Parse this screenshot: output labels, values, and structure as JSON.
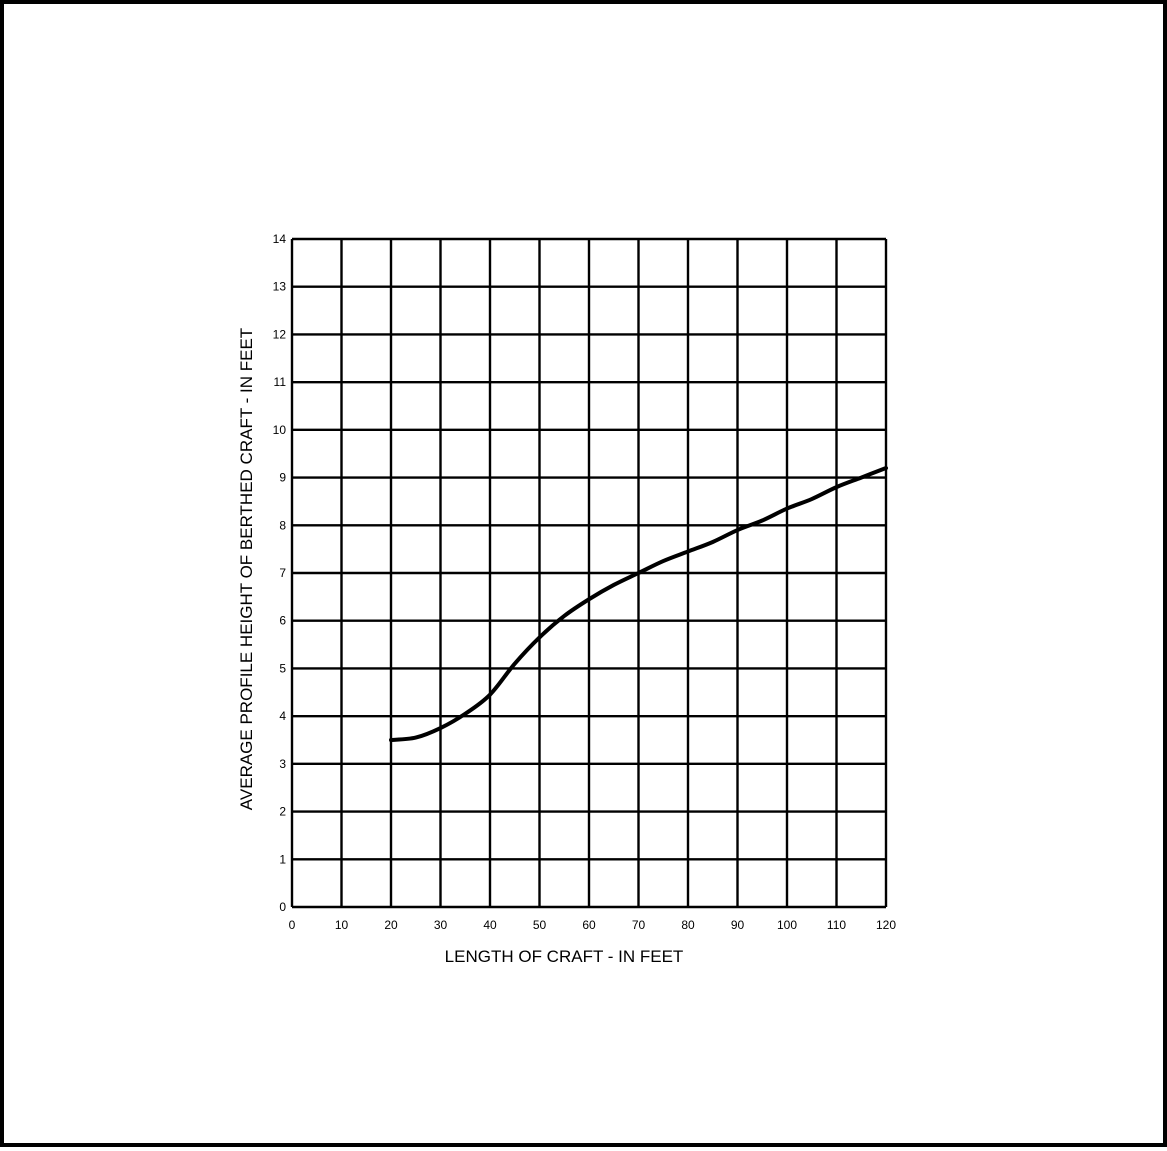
{
  "chart_data": {
    "type": "line",
    "title": "",
    "xlabel": "LENGTH OF CRAFT - IN FEET",
    "ylabel": "AVERAGE PROFILE HEIGHT OF BERTHED CRAFT - IN FEET",
    "xlim": [
      0,
      120
    ],
    "ylim": [
      0,
      14
    ],
    "x_ticks": [
      "0",
      "10",
      "20",
      "30",
      "40",
      "50",
      "60",
      "70",
      "80",
      "90",
      "100",
      "110",
      "120"
    ],
    "y_ticks": [
      "0",
      "1",
      "2",
      "3",
      "4",
      "5",
      "6",
      "7",
      "8",
      "9",
      "10",
      "11",
      "12",
      "13",
      "14"
    ],
    "grid": true,
    "series": [
      {
        "x": [
          20,
          25,
          30,
          35,
          40,
          45,
          50,
          55,
          60,
          65,
          70,
          75,
          80,
          85,
          90,
          95,
          100,
          105,
          110,
          115,
          120
        ],
        "y": [
          3.5,
          3.55,
          3.75,
          4.05,
          4.45,
          5.1,
          5.65,
          6.1,
          6.45,
          6.75,
          7.0,
          7.25,
          7.45,
          7.65,
          7.9,
          8.1,
          8.35,
          8.55,
          8.8,
          9.0,
          9.2
        ]
      }
    ]
  }
}
